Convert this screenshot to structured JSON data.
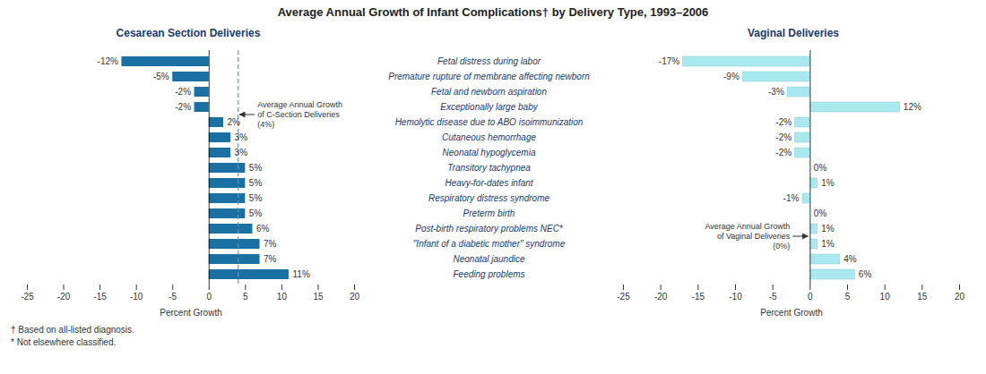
{
  "chart_data": {
    "type": "bar",
    "orientation": "horizontal",
    "title": "Average Annual Growth of Infant Complications† by Delivery Type, 1993–2006",
    "categories": [
      "Fetal distress during labor",
      "Premature rupture of membrane affecting newborn",
      "Fetal and newborn aspiration",
      "Exceptionally large baby",
      "Hemolytic disease due to ABO isoimmunization",
      "Cutaneous hemorrhage",
      "Neonatal hypoglycemia",
      "Transitory tachypnea",
      "Heavy-for-dates infant",
      "Respiratory distress syndrome",
      "Preterm birth",
      "Post-birth respiratory problems NEC*",
      "\"Infant of a diabetic mother\" syndrome",
      "Neonatal jaundice",
      "Feeding problems"
    ],
    "series": [
      {
        "name": "Cesarean Section Deliveries",
        "color": "#1a6fa3",
        "values": [
          -12,
          -5,
          -2,
          -2,
          2,
          3,
          3,
          5,
          5,
          5,
          5,
          6,
          7,
          7,
          11
        ],
        "value_labels": [
          "-12%",
          "-5%",
          "-2%",
          "-2%",
          "2%",
          "3%",
          "3%",
          "5%",
          "5%",
          "5%",
          "5%",
          "6%",
          "7%",
          "7%",
          "11%"
        ],
        "average": 4,
        "annotation": "Average Annual Growth\nof C-Section Deliveries\n(4%)"
      },
      {
        "name": "Vaginal Deliveries",
        "color": "#aae8f0",
        "values": [
          -17,
          -9,
          -3,
          12,
          -2,
          -2,
          -2,
          0,
          1,
          -1,
          0,
          1,
          1,
          4,
          6
        ],
        "value_labels": [
          "-17%",
          "-9%",
          "-3%",
          "12%",
          "-2%",
          "-2%",
          "-2%",
          "0%",
          "1%",
          "-1%",
          "0%",
          "1%",
          "1%",
          "4%",
          "6%"
        ],
        "average": 0,
        "annotation": "Average Annual Growth\nof Vaginal Deliveries\n(0%)"
      }
    ],
    "average_color": "#6699aa",
    "xlabel": "Percent Growth",
    "xlim": [
      -25,
      20
    ],
    "xticks": [
      -25,
      -20,
      -15,
      -10,
      -5,
      0,
      5,
      10,
      15,
      20
    ],
    "data_labels": true,
    "footnotes": [
      "† Based on all-listed diagnosis.",
      "* Not elsewhere classified."
    ]
  }
}
